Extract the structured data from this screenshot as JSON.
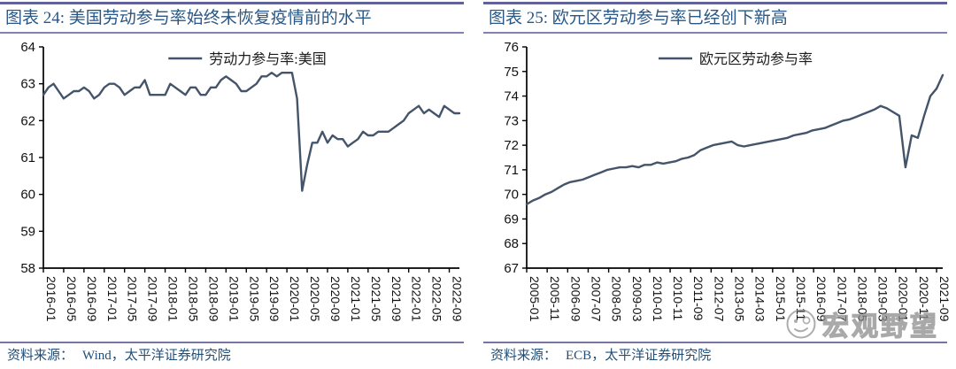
{
  "page": {
    "background": "#ffffff"
  },
  "colors": {
    "series_line": "#44546a",
    "title_text": "#2a5784",
    "source_text": "#1f4e79",
    "top_rule": "#62629b",
    "title_rule": "#8181b4",
    "source_rule": "#75759f",
    "axis": "#000000",
    "watermark": "#8a8a8a"
  },
  "panels": [
    {
      "title": "图表 24: 美国劳动参与率始终未恢复疫情前的水平",
      "source_label": "资料来源：",
      "source": "Wind，太平洋证券研究院"
    },
    {
      "title": "图表 25:  欧元区劳动参与率已经创下新高",
      "source_label": "资料来源：",
      "source": "ECB，太平洋证券研究院"
    }
  ],
  "watermark": {
    "text": "宏观野望",
    "icon": "face-with-glasses-icon"
  },
  "chart_data": [
    {
      "type": "line",
      "title": "图表 24: 美国劳动参与率始终未恢复疫情前的水平",
      "legend": "劳动力参与率:美国",
      "frequency": "monthly",
      "x_start": "2016-01",
      "x_end": "2022-11",
      "ylim": [
        58,
        64
      ],
      "y_ticks": [
        58,
        59,
        60,
        61,
        62,
        63,
        64
      ],
      "x_labels": [
        "2016-01",
        "2016-05",
        "2016-09",
        "2017-01",
        "2017-05",
        "2017-09",
        "2018-01",
        "2018-05",
        "2018-09",
        "2019-01",
        "2019-05",
        "2019-09",
        "2020-01",
        "2020-05",
        "2020-09",
        "2021-01",
        "2021-05",
        "2021-09",
        "2022-01",
        "2022-05",
        "2022-09"
      ],
      "x_label_step_months": 4,
      "total_months": 82,
      "values": [
        62.7,
        62.9,
        63.0,
        62.8,
        62.6,
        62.7,
        62.8,
        62.8,
        62.9,
        62.8,
        62.6,
        62.7,
        62.9,
        63.0,
        63.0,
        62.9,
        62.7,
        62.8,
        62.9,
        62.9,
        63.1,
        62.7,
        62.7,
        62.7,
        62.7,
        63.0,
        62.9,
        62.8,
        62.7,
        62.9,
        62.9,
        62.7,
        62.7,
        62.9,
        62.9,
        63.1,
        63.2,
        63.1,
        63.0,
        62.8,
        62.8,
        62.9,
        63.0,
        63.2,
        63.2,
        63.3,
        63.2,
        63.3,
        63.3,
        63.3,
        62.6,
        60.1,
        60.8,
        61.4,
        61.4,
        61.7,
        61.4,
        61.6,
        61.5,
        61.5,
        61.3,
        61.4,
        61.5,
        61.7,
        61.6,
        61.6,
        61.7,
        61.7,
        61.7,
        61.8,
        61.9,
        62.0,
        62.2,
        62.3,
        62.4,
        62.2,
        62.3,
        62.2,
        62.1,
        62.4,
        62.3,
        62.2,
        62.2
      ]
    },
    {
      "type": "line",
      "title": "图表 25: 欧元区劳动参与率已经创下新高",
      "legend": "欧元区劳动参与率",
      "frequency": "quarterly",
      "x_start": "2005-01",
      "x_end": "2021-12",
      "ylim": [
        67,
        76
      ],
      "y_ticks": [
        67,
        68,
        69,
        70,
        71,
        72,
        73,
        74,
        75,
        76
      ],
      "x_labels": [
        "2005-01",
        "2005-11",
        "2006-09",
        "2007-07",
        "2008-05",
        "2009-03",
        "2010-01",
        "2010-11",
        "2011-09",
        "2012-07",
        "2013-05",
        "2014-03",
        "2015-01",
        "2015-11",
        "2016-09",
        "2017-07",
        "2018-05",
        "2019-03",
        "2020-01",
        "2020-11",
        "2021-09"
      ],
      "x_label_step_months": 10,
      "total_months": 203,
      "values": [
        69.6,
        69.75,
        69.85,
        70.0,
        70.1,
        70.25,
        70.4,
        70.5,
        70.55,
        70.6,
        70.7,
        70.8,
        70.9,
        71.0,
        71.05,
        71.1,
        71.1,
        71.15,
        71.1,
        71.2,
        71.2,
        71.3,
        71.25,
        71.3,
        71.35,
        71.45,
        71.5,
        71.6,
        71.8,
        71.9,
        72.0,
        72.05,
        72.1,
        72.15,
        72.0,
        71.95,
        72.0,
        72.05,
        72.1,
        72.15,
        72.2,
        72.25,
        72.3,
        72.4,
        72.45,
        72.5,
        72.6,
        72.65,
        72.7,
        72.8,
        72.9,
        73.0,
        73.05,
        73.15,
        73.25,
        73.35,
        73.45,
        73.6,
        73.5,
        73.35,
        73.2,
        71.1,
        72.4,
        72.3,
        73.2,
        74.0,
        74.3,
        74.85
      ]
    }
  ]
}
